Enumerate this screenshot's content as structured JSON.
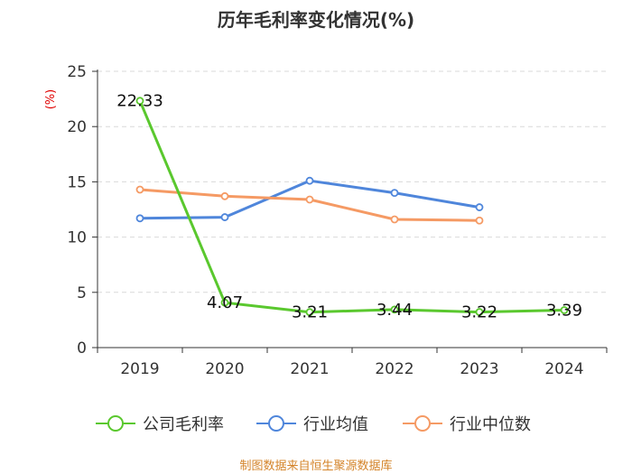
{
  "chart_data": {
    "type": "line",
    "title": "历年毛利率变化情况(%)",
    "ylabel": "(%)",
    "xlabel": "",
    "categories": [
      "2019",
      "2020",
      "2021",
      "2022",
      "2023",
      "2024"
    ],
    "ylim": [
      0,
      25
    ],
    "yticks": [
      "0",
      "5",
      "10",
      "15",
      "20",
      "25"
    ],
    "grid": true,
    "legend_position": "bottom",
    "series": [
      {
        "name": "公司毛利率",
        "color": "#5ac82e",
        "values": [
          22.33,
          4.07,
          3.21,
          3.44,
          3.22,
          3.39
        ],
        "labels": [
          "22.33",
          "4.07",
          "3.21",
          "3.44",
          "3.22",
          "3.39"
        ]
      },
      {
        "name": "行业均值",
        "color": "#4f86db",
        "values": [
          11.7,
          11.8,
          15.1,
          14.0,
          12.7,
          null
        ]
      },
      {
        "name": "行业中位数",
        "color": "#f59a64",
        "values": [
          14.3,
          13.7,
          13.4,
          11.6,
          11.5,
          null
        ]
      }
    ]
  },
  "source_note": "制图数据来自恒生聚源数据库"
}
